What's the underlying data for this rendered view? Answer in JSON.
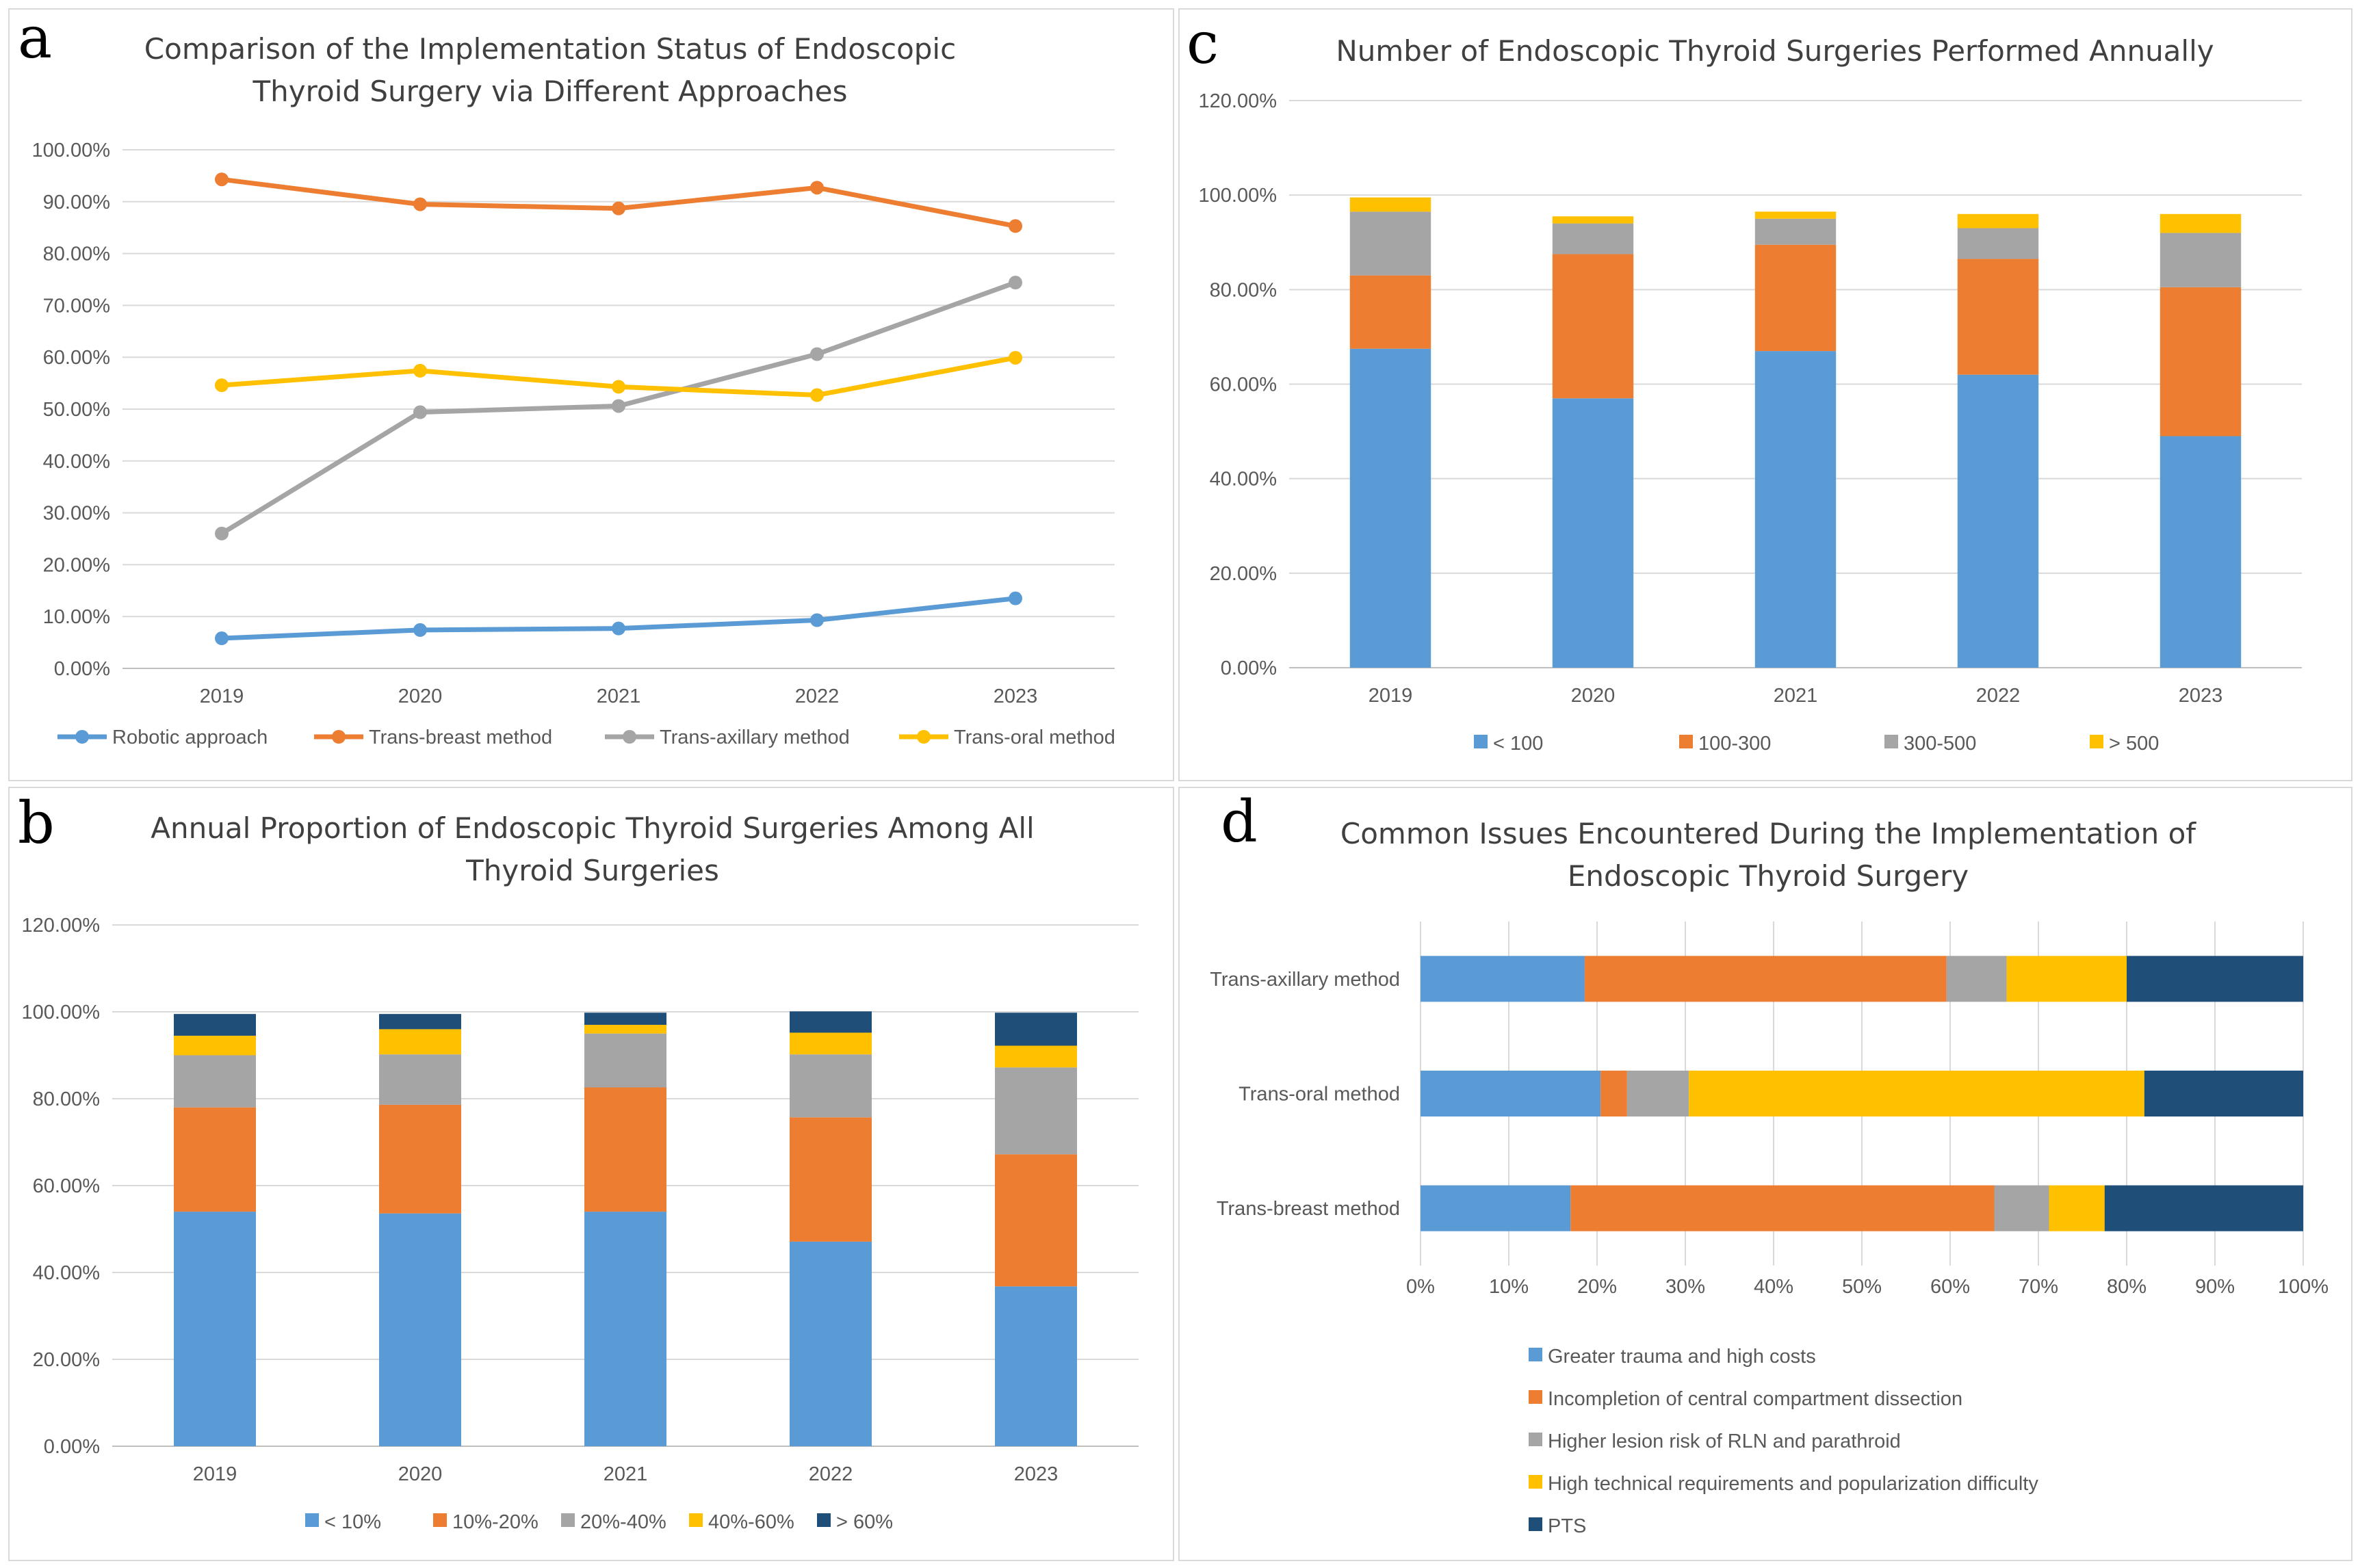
{
  "colors": {
    "blue": "#5b9bd5",
    "orange": "#ed7d31",
    "gray": "#a5a5a5",
    "yellow": "#ffc000",
    "navy": "#1f4e79"
  },
  "chart_data": [
    {
      "panel": "a",
      "type": "line",
      "title": [
        "Comparison of the Implementation Status of Endoscopic",
        "Thyroid Surgery via Different Approaches"
      ],
      "categories": [
        "2019",
        "2020",
        "2021",
        "2022",
        "2023"
      ],
      "ylim": [
        0,
        100
      ],
      "yticks": [
        "0.00%",
        "10.00%",
        "20.00%",
        "30.00%",
        "40.00%",
        "50.00%",
        "60.00%",
        "70.00%",
        "80.00%",
        "90.00%",
        "100.00%"
      ],
      "series": [
        {
          "name": "Robotic approach",
          "color": "#5b9bd5",
          "values": [
            5.8,
            7.4,
            7.7,
            9.3,
            13.5
          ]
        },
        {
          "name": "Trans-breast method",
          "color": "#ed7d31",
          "values": [
            94.3,
            89.5,
            88.7,
            92.7,
            85.3
          ]
        },
        {
          "name": "Trans-axillary method",
          "color": "#a5a5a5",
          "values": [
            26.0,
            49.4,
            50.6,
            60.6,
            74.4
          ]
        },
        {
          "name": "Trans-oral method",
          "color": "#ffc000",
          "values": [
            54.6,
            57.4,
            54.3,
            52.7,
            59.9
          ]
        }
      ]
    },
    {
      "panel": "b",
      "type": "bar",
      "stacked": true,
      "title": [
        "Annual Proportion of Endoscopic Thyroid Surgeries Among All",
        "Thyroid Surgeries"
      ],
      "categories": [
        "2019",
        "2020",
        "2021",
        "2022",
        "2023"
      ],
      "ylim": [
        0,
        120
      ],
      "yticks": [
        "0.00%",
        "20.00%",
        "40.00%",
        "60.00%",
        "80.00%",
        "100.00%",
        "120.00%"
      ],
      "series": [
        {
          "name": "< 10%",
          "color": "#5b9bd5",
          "values": [
            54.0,
            53.6,
            54.0,
            47.1,
            36.8
          ]
        },
        {
          "name": "10%-20%",
          "color": "#ed7d31",
          "values": [
            24.0,
            25.0,
            28.6,
            28.6,
            30.4
          ]
        },
        {
          "name": "20%-40%",
          "color": "#a5a5a5",
          "values": [
            12.0,
            11.6,
            12.4,
            14.5,
            20.0
          ]
        },
        {
          "name": "40%-60%",
          "color": "#ffc000",
          "values": [
            4.5,
            5.8,
            2.0,
            5.0,
            5.0
          ]
        },
        {
          "name": "> 60%",
          "color": "#1f4e79",
          "values": [
            5.0,
            3.5,
            2.8,
            4.9,
            7.6
          ]
        }
      ]
    },
    {
      "panel": "c",
      "type": "bar",
      "stacked": true,
      "title": [
        "Number of Endoscopic Thyroid Surgeries Performed Annually"
      ],
      "categories": [
        "2019",
        "2020",
        "2021",
        "2022",
        "2023"
      ],
      "ylim": [
        0,
        120
      ],
      "yticks": [
        "0.00%",
        "20.00%",
        "40.00%",
        "60.00%",
        "80.00%",
        "100.00%",
        "120.00%"
      ],
      "series": [
        {
          "name": "< 100",
          "color": "#5b9bd5",
          "values": [
            67.5,
            57.0,
            67.0,
            62.0,
            49.0
          ]
        },
        {
          "name": "100-300",
          "color": "#ed7d31",
          "values": [
            15.5,
            30.5,
            22.5,
            24.5,
            31.5
          ]
        },
        {
          "name": "300-500",
          "color": "#a5a5a5",
          "values": [
            13.5,
            6.5,
            5.5,
            6.5,
            11.5
          ]
        },
        {
          "name": "> 500",
          "color": "#ffc000",
          "values": [
            3.0,
            1.5,
            1.5,
            3.0,
            4.0
          ]
        }
      ]
    },
    {
      "panel": "d",
      "type": "bar",
      "stacked": true,
      "orientation": "horizontal",
      "title": [
        "Common Issues Encountered During the Implementation of",
        "Endoscopic Thyroid Surgery"
      ],
      "categories": [
        "Trans-axillary method",
        "Trans-oral method",
        "Trans-breast method"
      ],
      "xlim": [
        0,
        100
      ],
      "xticks": [
        "0%",
        "10%",
        "20%",
        "30%",
        "40%",
        "50%",
        "60%",
        "70%",
        "80%",
        "90%",
        "100%"
      ],
      "series": [
        {
          "name": "Greater trauma and high costs",
          "color": "#5b9bd5",
          "values": [
            18.6,
            20.4,
            17.0
          ]
        },
        {
          "name": "Incompletion of central compartment dissection",
          "color": "#ed7d31",
          "values": [
            41.0,
            3.0,
            48.0
          ]
        },
        {
          "name": "Higher lesion risk of RLN and parathroid",
          "color": "#a5a5a5",
          "values": [
            6.8,
            7.0,
            6.2
          ]
        },
        {
          "name": "High technical requirements and popularization difficulty",
          "color": "#ffc000",
          "values": [
            13.6,
            51.6,
            6.3
          ]
        },
        {
          "name": "PTS",
          "color": "#1f4e79",
          "values": [
            20.0,
            18.0,
            22.5
          ]
        }
      ]
    }
  ]
}
